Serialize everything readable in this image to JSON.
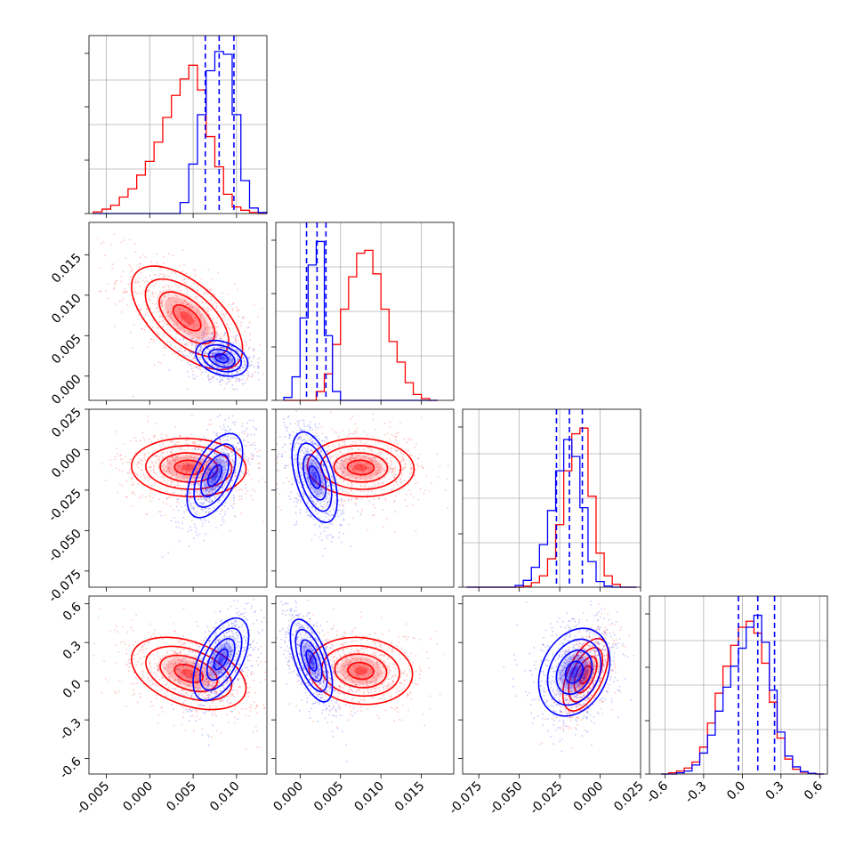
{
  "chart_data": {
    "type": "corner",
    "n_params": 4,
    "series": [
      {
        "name": "blue",
        "color": "#0000ff"
      },
      {
        "name": "red",
        "color": "#ff0000"
      }
    ],
    "params": [
      {
        "id": "p0",
        "range": [
          -0.007,
          0.0135
        ],
        "ticks": [
          "-0.005",
          "0.000",
          "0.005",
          "0.010"
        ],
        "tick_values": [
          -0.005,
          0.0,
          0.005,
          0.01
        ],
        "bins": [
          -0.006,
          -0.005,
          -0.004,
          -0.003,
          -0.002,
          -0.001,
          0.0,
          0.001,
          0.002,
          0.003,
          0.004,
          0.005,
          0.006,
          0.007,
          0.008,
          0.009,
          0.01,
          0.011,
          0.012,
          0.013
        ],
        "hist": {
          "red": [
            0.3,
            0.8,
            1.5,
            3.0,
            4.5,
            7.0,
            9.5,
            13.0,
            17.5,
            21.5,
            24.5,
            27.0,
            22.5,
            14.0,
            8.5,
            3.5,
            1.2,
            0.6,
            0.2,
            0.0
          ],
          "blue": [
            0.0,
            0.0,
            0.0,
            0.0,
            0.0,
            0.0,
            0.0,
            0.0,
            0.0,
            0.0,
            2.0,
            9.0,
            18.0,
            26.0,
            29.5,
            29.0,
            18.0,
            6.0,
            1.0,
            0.2
          ]
        },
        "ymax": 30,
        "quantiles": [
          0.0064,
          0.008,
          0.0097
        ]
      },
      {
        "id": "p1",
        "range": [
          -0.003,
          0.019
        ],
        "ticks": [
          "0.000",
          "0.005",
          "0.010",
          "0.015"
        ],
        "tick_values": [
          0.0,
          0.005,
          0.01,
          0.015
        ],
        "bins": [
          -0.0015,
          -0.0005,
          0.0005,
          0.0015,
          0.0025,
          0.0035,
          0.0045,
          0.0055,
          0.0065,
          0.0075,
          0.0085,
          0.0095,
          0.0105,
          0.0115,
          0.0125,
          0.0135,
          0.0145,
          0.0155,
          0.0165
        ],
        "hist": {
          "blue": [
            0.5,
            4.0,
            14.0,
            23.0,
            27.0,
            11.0,
            1.5,
            0.0,
            0.0,
            0.0,
            0.0,
            0.0,
            0.0,
            0.0,
            0.0,
            0.0,
            0.0,
            0.0,
            0.0
          ],
          "red": [
            0.0,
            0.0,
            0.0,
            0.0,
            1.5,
            4.5,
            9.5,
            15.5,
            21.0,
            25.0,
            25.5,
            21.5,
            15.5,
            10.0,
            6.5,
            3.0,
            1.0,
            0.3,
            0.0
          ]
        },
        "ymax": 28,
        "quantiles": [
          0.0008,
          0.0021,
          0.0032
        ]
      },
      {
        "id": "p2",
        "range": [
          -0.085,
          0.025
        ],
        "ticks": [
          "-0.075",
          "-0.050",
          "-0.025",
          "0.000",
          "0.025"
        ],
        "tick_values": [
          -0.075,
          -0.05,
          -0.025,
          0.0,
          0.025
        ],
        "bins": [
          -0.08,
          -0.075,
          -0.07,
          -0.065,
          -0.06,
          -0.055,
          -0.05,
          -0.045,
          -0.04,
          -0.035,
          -0.03,
          -0.025,
          -0.02,
          -0.015,
          -0.01,
          -0.005,
          0.0,
          0.005,
          0.01,
          0.015,
          0.02
        ],
        "hist": {
          "blue": [
            0.0,
            0.0,
            0.0,
            0.0,
            0.0,
            0.0,
            0.3,
            1.2,
            3.5,
            7.5,
            13.5,
            20.5,
            26.0,
            23.0,
            14.0,
            4.5,
            1.0,
            0.2,
            0.0,
            0.0,
            0.0
          ],
          "red": [
            0.0,
            0.0,
            0.0,
            0.0,
            0.0,
            0.0,
            0.0,
            0.2,
            0.8,
            2.0,
            5.0,
            11.0,
            20.5,
            27.0,
            28.0,
            16.0,
            6.0,
            2.0,
            0.5,
            0.0,
            0.0
          ]
        },
        "ymax": 29,
        "quantiles": [
          -0.027,
          -0.019,
          -0.011
        ]
      },
      {
        "id": "p3",
        "range": [
          -0.72,
          0.66
        ],
        "ticks": [
          "-0.6",
          "-0.3",
          "0.0",
          "0.3",
          "0.6"
        ],
        "tick_values": [
          -0.6,
          -0.3,
          0.0,
          0.3,
          0.6
        ],
        "bins": [
          -0.6,
          -0.54,
          -0.48,
          -0.42,
          -0.36,
          -0.3,
          -0.24,
          -0.18,
          -0.12,
          -0.06,
          0.0,
          0.06,
          0.12,
          0.18,
          0.24,
          0.3,
          0.36,
          0.42,
          0.48,
          0.54,
          0.6
        ],
        "hist": {
          "blue": [
            0.0,
            0.0,
            0.2,
            0.5,
            1.5,
            3.5,
            6.5,
            10.5,
            14.5,
            18.0,
            21.0,
            24.5,
            26.5,
            22.0,
            14.0,
            7.0,
            3.0,
            1.2,
            0.4,
            0.1,
            0.0
          ],
          "red": [
            0.0,
            0.2,
            0.5,
            1.0,
            2.0,
            4.5,
            8.5,
            13.5,
            18.0,
            21.5,
            24.5,
            25.5,
            23.5,
            18.5,
            12.0,
            6.0,
            2.5,
            0.8,
            0.3,
            0.1,
            0.0
          ]
        },
        "ymax": 27.5,
        "quantiles": [
          -0.03,
          0.12,
          0.25
        ]
      }
    ],
    "pairs": [
      {
        "x": 0,
        "y": 1,
        "blue": {
          "mean": [
            0.0083,
            0.0022
          ],
          "sx": 0.0015,
          "sy": 0.0011,
          "rho": -0.3
        },
        "red": {
          "mean": [
            0.0043,
            0.0072
          ],
          "sx": 0.0032,
          "sy": 0.0032,
          "rho": -0.6
        }
      },
      {
        "x": 0,
        "y": 2,
        "blue": {
          "mean": [
            0.0075,
            -0.016
          ],
          "sx": 0.0016,
          "sy": 0.013,
          "rho": 0.55
        },
        "red": {
          "mean": [
            0.0045,
            -0.011
          ],
          "sx": 0.0033,
          "sy": 0.009,
          "rho": -0.05
        }
      },
      {
        "x": 1,
        "y": 2,
        "blue": {
          "mean": [
            0.0018,
            -0.017
          ],
          "sx": 0.0014,
          "sy": 0.014,
          "rho": -0.5
        },
        "red": {
          "mean": [
            0.0075,
            -0.011
          ],
          "sx": 0.0033,
          "sy": 0.009,
          "rho": -0.05
        }
      },
      {
        "x": 0,
        "y": 3,
        "blue": {
          "mean": [
            0.0082,
            0.17
          ],
          "sx": 0.0016,
          "sy": 0.16,
          "rho": 0.55
        },
        "red": {
          "mean": [
            0.0045,
            0.06
          ],
          "sx": 0.0033,
          "sy": 0.14,
          "rho": -0.4
        }
      },
      {
        "x": 1,
        "y": 3,
        "blue": {
          "mean": [
            0.0014,
            0.16
          ],
          "sx": 0.0013,
          "sy": 0.16,
          "rho": -0.6
        },
        "red": {
          "mean": [
            0.0075,
            0.08
          ],
          "sx": 0.0032,
          "sy": 0.13,
          "rho": -0.1
        }
      },
      {
        "x": 2,
        "y": 3,
        "blue": {
          "mean": [
            -0.016,
            0.07
          ],
          "sx": 0.011,
          "sy": 0.17,
          "rho": 0.25
        },
        "red": {
          "mean": [
            -0.009,
            0.05
          ],
          "sx": 0.007,
          "sy": 0.14,
          "rho": 0.55
        }
      }
    ],
    "contour_levels": [
      0.5,
      1.0,
      1.5,
      2.0
    ],
    "grid": true
  }
}
